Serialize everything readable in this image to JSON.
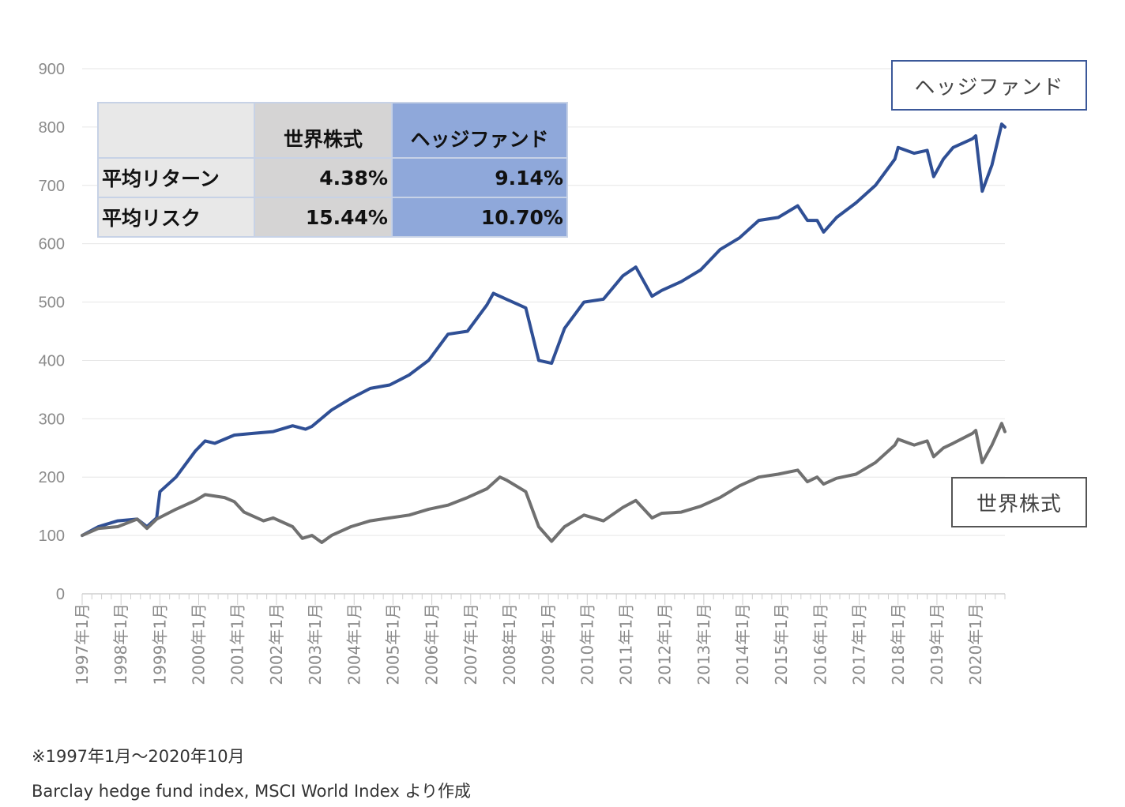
{
  "chart_data": {
    "type": "line",
    "ylim": [
      0,
      900
    ],
    "yticks": [
      "0",
      "100",
      "200",
      "300",
      "400",
      "500",
      "600",
      "700",
      "800",
      "900"
    ],
    "x_start": "1997年1月",
    "x_end": "2020年10月",
    "xtick_labels": [
      "1997年1月",
      "1998年1月",
      "1999年1月",
      "2000年1月",
      "2001年1月",
      "2002年1月",
      "2003年1月",
      "2004年1月",
      "2005年1月",
      "2006年1月",
      "2007年1月",
      "2008年1月",
      "2009年1月",
      "2010年1月",
      "2011年1月",
      "2012年1月",
      "2013年1月",
      "2014年1月",
      "2015年1月",
      "2016年1月",
      "2017年1月",
      "2018年1月",
      "2019年1月",
      "2020年1月"
    ],
    "grid": true,
    "series": [
      {
        "name": "ヘッジファンド",
        "color": "#2f4f95",
        "points": [
          [
            "1997-01",
            100
          ],
          [
            "1997-06",
            115
          ],
          [
            "1997-12",
            125
          ],
          [
            "1998-06",
            128
          ],
          [
            "1998-09",
            115
          ],
          [
            "1998-12",
            130
          ],
          [
            "1999-01",
            175
          ],
          [
            "1999-06",
            200
          ],
          [
            "1999-12",
            245
          ],
          [
            "2000-03",
            262
          ],
          [
            "2000-06",
            258
          ],
          [
            "2000-12",
            272
          ],
          [
            "2001-06",
            275
          ],
          [
            "2001-12",
            278
          ],
          [
            "2002-06",
            288
          ],
          [
            "2002-10",
            282
          ],
          [
            "2002-12",
            287
          ],
          [
            "2003-06",
            315
          ],
          [
            "2003-12",
            335
          ],
          [
            "2004-06",
            352
          ],
          [
            "2004-12",
            358
          ],
          [
            "2005-06",
            375
          ],
          [
            "2005-12",
            400
          ],
          [
            "2006-06",
            445
          ],
          [
            "2006-12",
            450
          ],
          [
            "2007-06",
            495
          ],
          [
            "2007-08",
            515
          ],
          [
            "2007-12",
            505
          ],
          [
            "2008-06",
            490
          ],
          [
            "2008-10",
            400
          ],
          [
            "2009-02",
            395
          ],
          [
            "2009-06",
            455
          ],
          [
            "2009-12",
            500
          ],
          [
            "2010-06",
            505
          ],
          [
            "2010-12",
            545
          ],
          [
            "2011-04",
            560
          ],
          [
            "2011-09",
            510
          ],
          [
            "2011-12",
            520
          ],
          [
            "2012-06",
            535
          ],
          [
            "2012-12",
            555
          ],
          [
            "2013-06",
            590
          ],
          [
            "2013-12",
            610
          ],
          [
            "2014-06",
            640
          ],
          [
            "2014-12",
            645
          ],
          [
            "2015-06",
            665
          ],
          [
            "2015-09",
            640
          ],
          [
            "2015-12",
            640
          ],
          [
            "2016-02",
            620
          ],
          [
            "2016-06",
            645
          ],
          [
            "2016-12",
            670
          ],
          [
            "2017-06",
            700
          ],
          [
            "2017-12",
            745
          ],
          [
            "2018-01",
            765
          ],
          [
            "2018-06",
            755
          ],
          [
            "2018-10",
            760
          ],
          [
            "2018-12",
            715
          ],
          [
            "2019-03",
            745
          ],
          [
            "2019-06",
            765
          ],
          [
            "2019-12",
            780
          ],
          [
            "2020-01",
            785
          ],
          [
            "2020-03",
            690
          ],
          [
            "2020-06",
            735
          ],
          [
            "2020-09",
            805
          ],
          [
            "2020-10",
            800
          ]
        ]
      },
      {
        "name": "世界株式",
        "color": "#707070",
        "points": [
          [
            "1997-01",
            100
          ],
          [
            "1997-06",
            112
          ],
          [
            "1997-12",
            115
          ],
          [
            "1998-06",
            128
          ],
          [
            "1998-09",
            112
          ],
          [
            "1998-12",
            128
          ],
          [
            "1999-06",
            145
          ],
          [
            "1999-12",
            160
          ],
          [
            "2000-03",
            170
          ],
          [
            "2000-09",
            165
          ],
          [
            "2000-12",
            158
          ],
          [
            "2001-03",
            140
          ],
          [
            "2001-09",
            125
          ],
          [
            "2001-12",
            130
          ],
          [
            "2002-06",
            115
          ],
          [
            "2002-09",
            95
          ],
          [
            "2002-12",
            100
          ],
          [
            "2003-03",
            88
          ],
          [
            "2003-06",
            100
          ],
          [
            "2003-12",
            115
          ],
          [
            "2004-06",
            125
          ],
          [
            "2004-12",
            130
          ],
          [
            "2005-06",
            135
          ],
          [
            "2005-12",
            145
          ],
          [
            "2006-06",
            152
          ],
          [
            "2006-12",
            165
          ],
          [
            "2007-06",
            180
          ],
          [
            "2007-10",
            200
          ],
          [
            "2007-12",
            195
          ],
          [
            "2008-06",
            175
          ],
          [
            "2008-10",
            115
          ],
          [
            "2009-02",
            90
          ],
          [
            "2009-06",
            115
          ],
          [
            "2009-12",
            135
          ],
          [
            "2010-06",
            125
          ],
          [
            "2010-12",
            148
          ],
          [
            "2011-04",
            160
          ],
          [
            "2011-09",
            130
          ],
          [
            "2011-12",
            138
          ],
          [
            "2012-06",
            140
          ],
          [
            "2012-12",
            150
          ],
          [
            "2013-06",
            165
          ],
          [
            "2013-12",
            185
          ],
          [
            "2014-06",
            200
          ],
          [
            "2014-12",
            205
          ],
          [
            "2015-06",
            212
          ],
          [
            "2015-09",
            192
          ],
          [
            "2015-12",
            200
          ],
          [
            "2016-02",
            188
          ],
          [
            "2016-06",
            198
          ],
          [
            "2016-12",
            205
          ],
          [
            "2017-06",
            225
          ],
          [
            "2017-12",
            255
          ],
          [
            "2018-01",
            265
          ],
          [
            "2018-06",
            255
          ],
          [
            "2018-10",
            262
          ],
          [
            "2018-12",
            235
          ],
          [
            "2019-03",
            250
          ],
          [
            "2019-06",
            258
          ],
          [
            "2019-12",
            275
          ],
          [
            "2020-01",
            280
          ],
          [
            "2020-03",
            225
          ],
          [
            "2020-06",
            255
          ],
          [
            "2020-09",
            292
          ],
          [
            "2020-10",
            278
          ]
        ]
      }
    ]
  },
  "labels": {
    "hedge_fund": "ヘッジファンド",
    "world_stock": "世界株式"
  },
  "stats_table": {
    "header": [
      "",
      "世界株式",
      "ヘッジファンド"
    ],
    "rows": [
      [
        "平均リターン",
        "4.38%",
        "9.14%"
      ],
      [
        "平均リスク",
        "15.44%",
        "10.70%"
      ]
    ]
  },
  "notes": {
    "period": "※1997年1月〜2020年10月",
    "source": "Barclay hedge fund index, MSCI World Index より作成"
  }
}
